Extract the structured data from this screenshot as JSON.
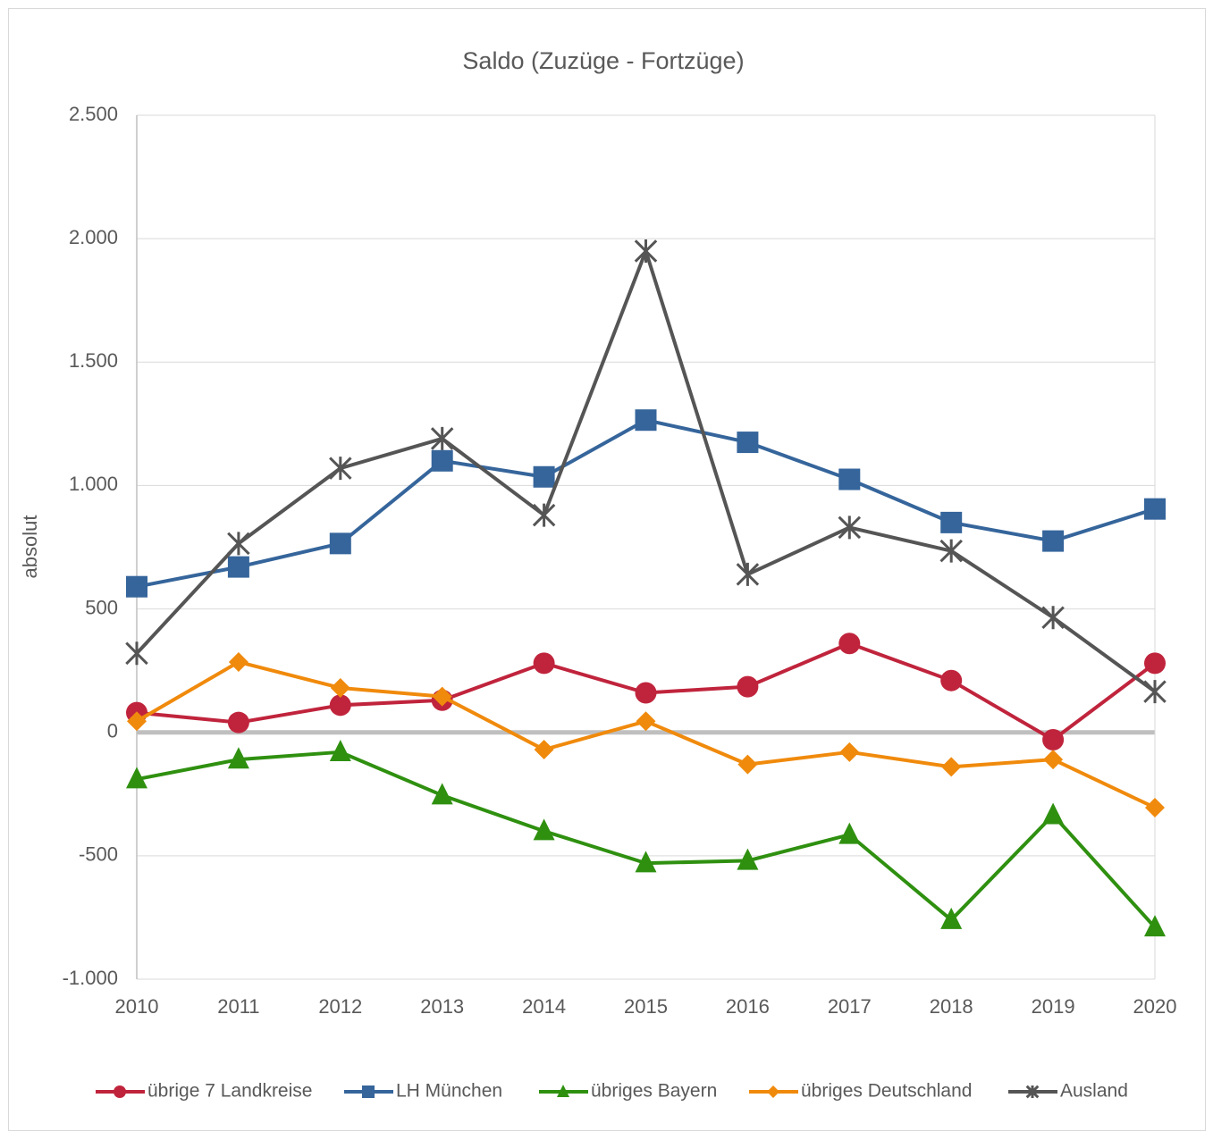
{
  "chart_data": {
    "type": "line",
    "title": "Saldo (Zuzüge - Fortzüge)",
    "y_label": "absolut",
    "categories": [
      "2010",
      "2011",
      "2012",
      "2013",
      "2014",
      "2015",
      "2016",
      "2017",
      "2018",
      "2019",
      "2020"
    ],
    "ylim": [
      -1000,
      2500
    ],
    "yticks": [
      {
        "value": -1000,
        "label": "-1.000"
      },
      -500,
      0,
      500,
      {
        "value": 1000,
        "label": "1.000"
      },
      {
        "value": 1500,
        "label": "1.500"
      },
      {
        "value": 2000,
        "label": "2.000"
      },
      {
        "value": 2500,
        "label": "2.500"
      }
    ],
    "grid": true,
    "legend": "bottom",
    "series": [
      {
        "name": "übrige 7 Landkreise",
        "color": "#c0243c",
        "marker": "circle",
        "values": [
          80,
          40,
          110,
          130,
          280,
          160,
          185,
          360,
          210,
          -30,
          280
        ]
      },
      {
        "name": "LH München",
        "color": "#35659b",
        "marker": "square",
        "values": [
          590,
          670,
          765,
          1100,
          1035,
          1265,
          1175,
          1025,
          850,
          775,
          905
        ]
      },
      {
        "name": "übriges Bayern",
        "color": "#2f9010",
        "marker": "triangle",
        "values": [
          -190,
          -110,
          -80,
          -255,
          -400,
          -530,
          -520,
          -415,
          -760,
          -335,
          -790
        ]
      },
      {
        "name": "übriges Deutschland",
        "color": "#f08a0c",
        "marker": "diamond",
        "values": [
          45,
          285,
          180,
          145,
          -70,
          45,
          -130,
          -80,
          -140,
          -110,
          -305
        ]
      },
      {
        "name": "Ausland",
        "color": "#555555",
        "marker": "star",
        "values": [
          320,
          765,
          1070,
          1190,
          880,
          1950,
          640,
          830,
          735,
          465,
          165
        ]
      }
    ]
  }
}
